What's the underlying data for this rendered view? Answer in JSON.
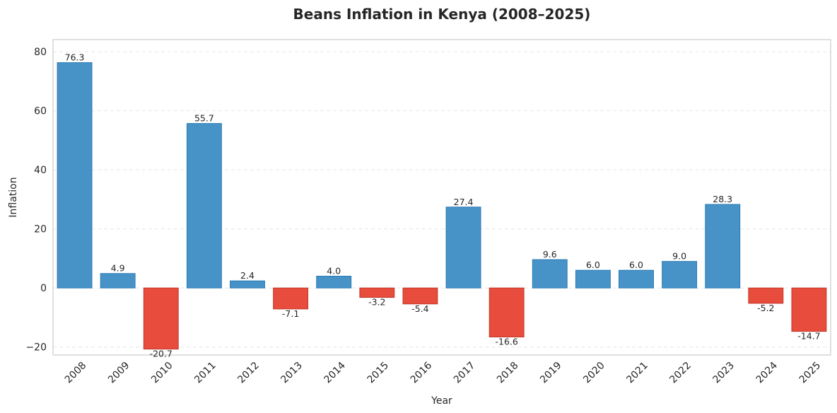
{
  "chart_data": {
    "type": "bar",
    "title": "Beans Inflation in Kenya (2008–2025)",
    "xlabel": "Year",
    "ylabel": "Inflation",
    "categories": [
      "2008",
      "2009",
      "2010",
      "2011",
      "2012",
      "2013",
      "2014",
      "2015",
      "2016",
      "2017",
      "2018",
      "2019",
      "2020",
      "2021",
      "2022",
      "2023",
      "2024",
      "2025"
    ],
    "values": [
      76.3,
      4.9,
      -20.7,
      55.7,
      2.4,
      -7.1,
      4.0,
      -3.2,
      -5.4,
      27.4,
      -16.6,
      9.6,
      6.0,
      6.0,
      9.0,
      28.3,
      -5.2,
      -14.7
    ],
    "value_labels": [
      "76.3",
      "4.9",
      "-20.7",
      "55.7",
      "2.4",
      "-7.1",
      "4.0",
      "-3.2",
      "-5.4",
      "27.4",
      "-16.6",
      "9.6",
      "6.0",
      "6.0",
      "9.0",
      "28.3",
      "-5.2",
      "-14.7"
    ],
    "ylim": [
      -22.7,
      84.1
    ],
    "yticks": [
      -20,
      0,
      20,
      40,
      60,
      80
    ],
    "ytick_labels": [
      "−20",
      "0",
      "20",
      "40",
      "60",
      "80"
    ],
    "grid": true,
    "colors": {
      "positive": "#4793c8",
      "positive_edge": "#2a7ab5",
      "negative": "#e74c3c",
      "negative_edge": "#c0392b",
      "grid": "#e6e6e6",
      "frame": "#cccccc",
      "text": "#262626"
    }
  }
}
